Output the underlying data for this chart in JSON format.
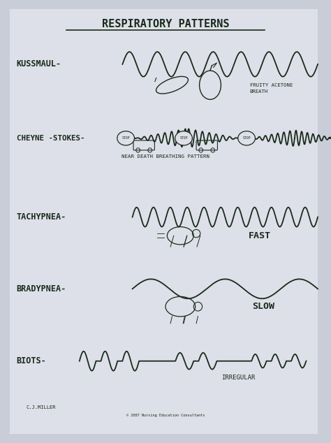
{
  "title": "RESPIRATORY PATTERNS",
  "bg_color": "#c8cdd8",
  "paper_color": "#dde0e8",
  "ink_color": "#1a2a1a",
  "credit": "C.J.MILLER",
  "copyright": "© 2007 Nursing Education Consultants",
  "kussmaul_label": "KUSSMAUL-",
  "kussmaul_note1": "FRUITY ACETONE",
  "kussmaul_note2": "BREATH",
  "cheyne_label": "CHEYNE -STOKES-",
  "cheyne_note": "NEAR DEATH BREATHING PATTERN",
  "tachy_label": "TACHYPNEA-",
  "tachy_note": "FAST",
  "brady_label": "BRADYPNEA-",
  "brady_note": "SLOW",
  "biots_label": "BIOTS-",
  "biots_note": "IRREGULAR"
}
